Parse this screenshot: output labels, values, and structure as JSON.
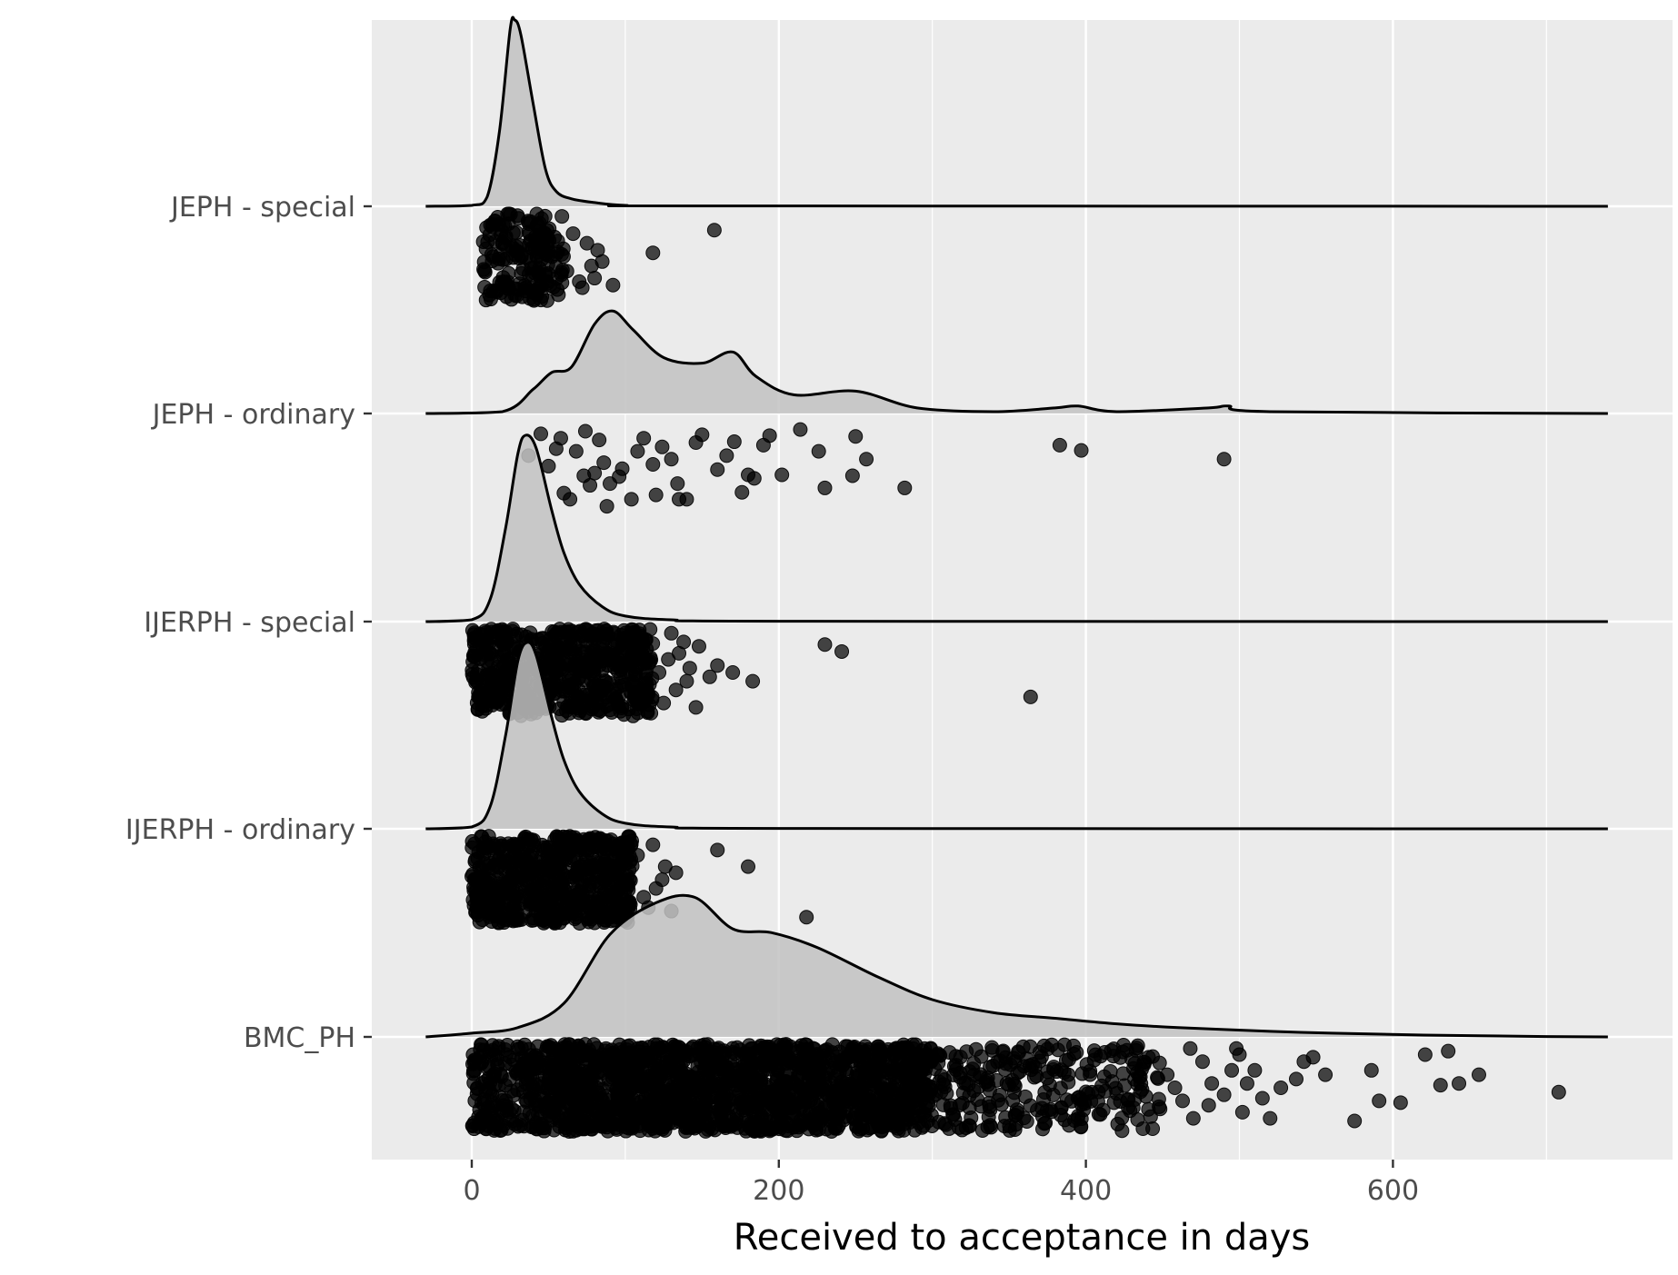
{
  "chart_data": {
    "type": "raincloud",
    "title": "",
    "xlabel": "Received to acceptance in days",
    "ylabel": "",
    "xlim": [
      -33,
      778
    ],
    "x_ticks": [
      0,
      200,
      400,
      600
    ],
    "x_tick_labels": [
      "0",
      "200",
      "400",
      "600"
    ],
    "grid": true,
    "legend": "none",
    "colors": {
      "panel": "#ebebeb",
      "grid": "#ffffff",
      "density_fill": "#c2c2c2",
      "density_line": "#000000",
      "point": "#000000"
    },
    "categories": [
      "BMC_PH",
      "IJERPH - ordinary",
      "IJERPH - special",
      "JEPH - ordinary",
      "JEPH - special"
    ],
    "series": [
      {
        "name": "JEPH - special",
        "density_x": [
          -30,
          0,
          10,
          18,
          25,
          28,
          32,
          40,
          48,
          55,
          65,
          80,
          100,
          150,
          740
        ],
        "density_rel": [
          0,
          0.005,
          0.05,
          0.4,
          0.95,
          1.0,
          0.92,
          0.55,
          0.2,
          0.08,
          0.04,
          0.02,
          0.005,
          0.002,
          0
        ],
        "cluster": {
          "min": 7,
          "max": 60,
          "count": 180
        },
        "points": [
          [
            158,
            0.19
          ],
          [
            118,
            0.45
          ],
          [
            92,
            0.82
          ],
          [
            80,
            0.74
          ],
          [
            75,
            0.34
          ],
          [
            78,
            0.6
          ],
          [
            85,
            0.55
          ],
          [
            70,
            0.78
          ],
          [
            82,
            0.42
          ],
          [
            66,
            0.23
          ],
          [
            72,
            0.85
          ],
          [
            62,
            0.66
          ]
        ]
      },
      {
        "name": "JEPH - ordinary",
        "density_x": [
          -30,
          20,
          40,
          52,
          65,
          80,
          92,
          105,
          125,
          150,
          170,
          185,
          210,
          250,
          290,
          340,
          380,
          395,
          420,
          480,
          493,
          520,
          740
        ],
        "density_rel": [
          0,
          0.01,
          0.13,
          0.22,
          0.25,
          0.48,
          0.55,
          0.45,
          0.3,
          0.27,
          0.33,
          0.2,
          0.1,
          0.12,
          0.03,
          0.01,
          0.03,
          0.04,
          0.01,
          0.03,
          0.04,
          0.01,
          0
        ],
        "cluster": {
          "min": 0,
          "max": 0,
          "count": 0
        },
        "points": [
          [
            45,
            0.15
          ],
          [
            55,
            0.32
          ],
          [
            68,
            0.35
          ],
          [
            74,
            0.12
          ],
          [
            86,
            0.48
          ],
          [
            96,
            0.64
          ],
          [
            112,
            0.2
          ],
          [
            130,
            0.44
          ],
          [
            150,
            0.16
          ],
          [
            171,
            0.24
          ],
          [
            194,
            0.17
          ],
          [
            214,
            0.1
          ],
          [
            250,
            0.18
          ],
          [
            257,
            0.44
          ],
          [
            282,
            0.77
          ],
          [
            383,
            0.28
          ],
          [
            397,
            0.34
          ],
          [
            490,
            0.44
          ],
          [
            37,
            0.4
          ],
          [
            50,
            0.52
          ],
          [
            60,
            0.83
          ],
          [
            73,
            0.63
          ],
          [
            80,
            0.6
          ],
          [
            90,
            0.72
          ],
          [
            104,
            0.9
          ],
          [
            118,
            0.5
          ],
          [
            134,
            0.72
          ],
          [
            160,
            0.56
          ],
          [
            180,
            0.62
          ],
          [
            202,
            0.62
          ],
          [
            230,
            0.77
          ],
          [
            248,
            0.63
          ],
          [
            226,
            0.35
          ],
          [
            176,
            0.82
          ],
          [
            140,
            0.9
          ],
          [
            88,
            0.98
          ],
          [
            64,
            0.9
          ],
          [
            58,
            0.2
          ],
          [
            124,
            0.3
          ],
          [
            146,
            0.25
          ],
          [
            166,
            0.4
          ],
          [
            184,
            0.66
          ],
          [
            190,
            0.28
          ],
          [
            108,
            0.35
          ],
          [
            98,
            0.55
          ],
          [
            77,
            0.74
          ],
          [
            83,
            0.22
          ],
          [
            120,
            0.85
          ],
          [
            135,
            0.9
          ]
        ]
      },
      {
        "name": "IJERPH - special",
        "density_x": [
          -30,
          0,
          12,
          22,
          30,
          35,
          42,
          52,
          60,
          70,
          85,
          100,
          130,
          200,
          740
        ],
        "density_rel": [
          0,
          0.01,
          0.12,
          0.5,
          0.9,
          1.0,
          0.93,
          0.6,
          0.37,
          0.2,
          0.08,
          0.03,
          0.01,
          0.002,
          0
        ],
        "cluster": {
          "min": 0,
          "max": 118,
          "count": 600
        },
        "points": [
          [
            230,
            0.18
          ],
          [
            241,
            0.26
          ],
          [
            364,
            0.78
          ],
          [
            183,
            0.6
          ],
          [
            170,
            0.5
          ],
          [
            160,
            0.42
          ],
          [
            146,
            0.9
          ],
          [
            140,
            0.6
          ],
          [
            133,
            0.7
          ],
          [
            128,
            0.35
          ],
          [
            148,
            0.2
          ],
          [
            138,
            0.15
          ],
          [
            125,
            0.85
          ],
          [
            122,
            0.5
          ],
          [
            135,
            0.28
          ],
          [
            130,
            0.05
          ],
          [
            155,
            0.55
          ],
          [
            142,
            0.45
          ]
        ]
      },
      {
        "name": "IJERPH - ordinary",
        "density_x": [
          -30,
          0,
          12,
          22,
          30,
          36,
          42,
          52,
          60,
          70,
          85,
          100,
          130,
          200,
          740
        ],
        "density_rel": [
          0,
          0.01,
          0.12,
          0.5,
          0.9,
          1.0,
          0.93,
          0.6,
          0.37,
          0.2,
          0.08,
          0.03,
          0.01,
          0.002,
          0
        ],
        "cluster": {
          "min": 0,
          "max": 105,
          "count": 600
        },
        "points": [
          [
            160,
            0.16
          ],
          [
            180,
            0.35
          ],
          [
            218,
            0.93
          ],
          [
            130,
            0.86
          ],
          [
            133,
            0.42
          ],
          [
            126,
            0.35
          ],
          [
            118,
            0.1
          ],
          [
            112,
            0.7
          ],
          [
            120,
            0.6
          ],
          [
            108,
            0.22
          ],
          [
            115,
            0.82
          ],
          [
            124,
            0.5
          ]
        ]
      },
      {
        "name": "BMC_PH",
        "density_x": [
          -30,
          0,
          30,
          60,
          90,
          120,
          145,
          170,
          195,
          225,
          265,
          300,
          340,
          380,
          420,
          460,
          520,
          560,
          620,
          700,
          740
        ],
        "density_rel": [
          0,
          0.02,
          0.05,
          0.18,
          0.55,
          0.72,
          0.75,
          0.58,
          0.56,
          0.48,
          0.32,
          0.2,
          0.13,
          0.1,
          0.07,
          0.05,
          0.03,
          0.02,
          0.01,
          0.002,
          0
        ],
        "cluster": {
          "min": 55,
          "max": 300,
          "count": 1500
        },
        "outer_clusters": [
          {
            "min": 0,
            "max": 55,
            "count": 220
          },
          {
            "min": 300,
            "max": 450,
            "count": 260
          }
        ],
        "points": [
          [
            708,
            0.55
          ],
          [
            636,
            0.08
          ],
          [
            621,
            0.12
          ],
          [
            656,
            0.35
          ],
          [
            643,
            0.45
          ],
          [
            631,
            0.47
          ],
          [
            605,
            0.67
          ],
          [
            591,
            0.65
          ],
          [
            575,
            0.88
          ],
          [
            586,
            0.3
          ],
          [
            556,
            0.35
          ],
          [
            548,
            0.15
          ],
          [
            537,
            0.4
          ],
          [
            520,
            0.85
          ],
          [
            515,
            0.62
          ],
          [
            510,
            0.3
          ],
          [
            498,
            0.05
          ],
          [
            502,
            0.78
          ],
          [
            490,
            0.58
          ],
          [
            482,
            0.45
          ],
          [
            476,
            0.2
          ],
          [
            470,
            0.85
          ],
          [
            463,
            0.65
          ],
          [
            458,
            0.5
          ],
          [
            453,
            0.35
          ],
          [
            468,
            0.05
          ],
          [
            480,
            0.7
          ],
          [
            495,
            0.3
          ],
          [
            505,
            0.45
          ],
          [
            527,
            0.5
          ],
          [
            542,
            0.2
          ],
          [
            500,
            0.12
          ]
        ]
      }
    ]
  }
}
